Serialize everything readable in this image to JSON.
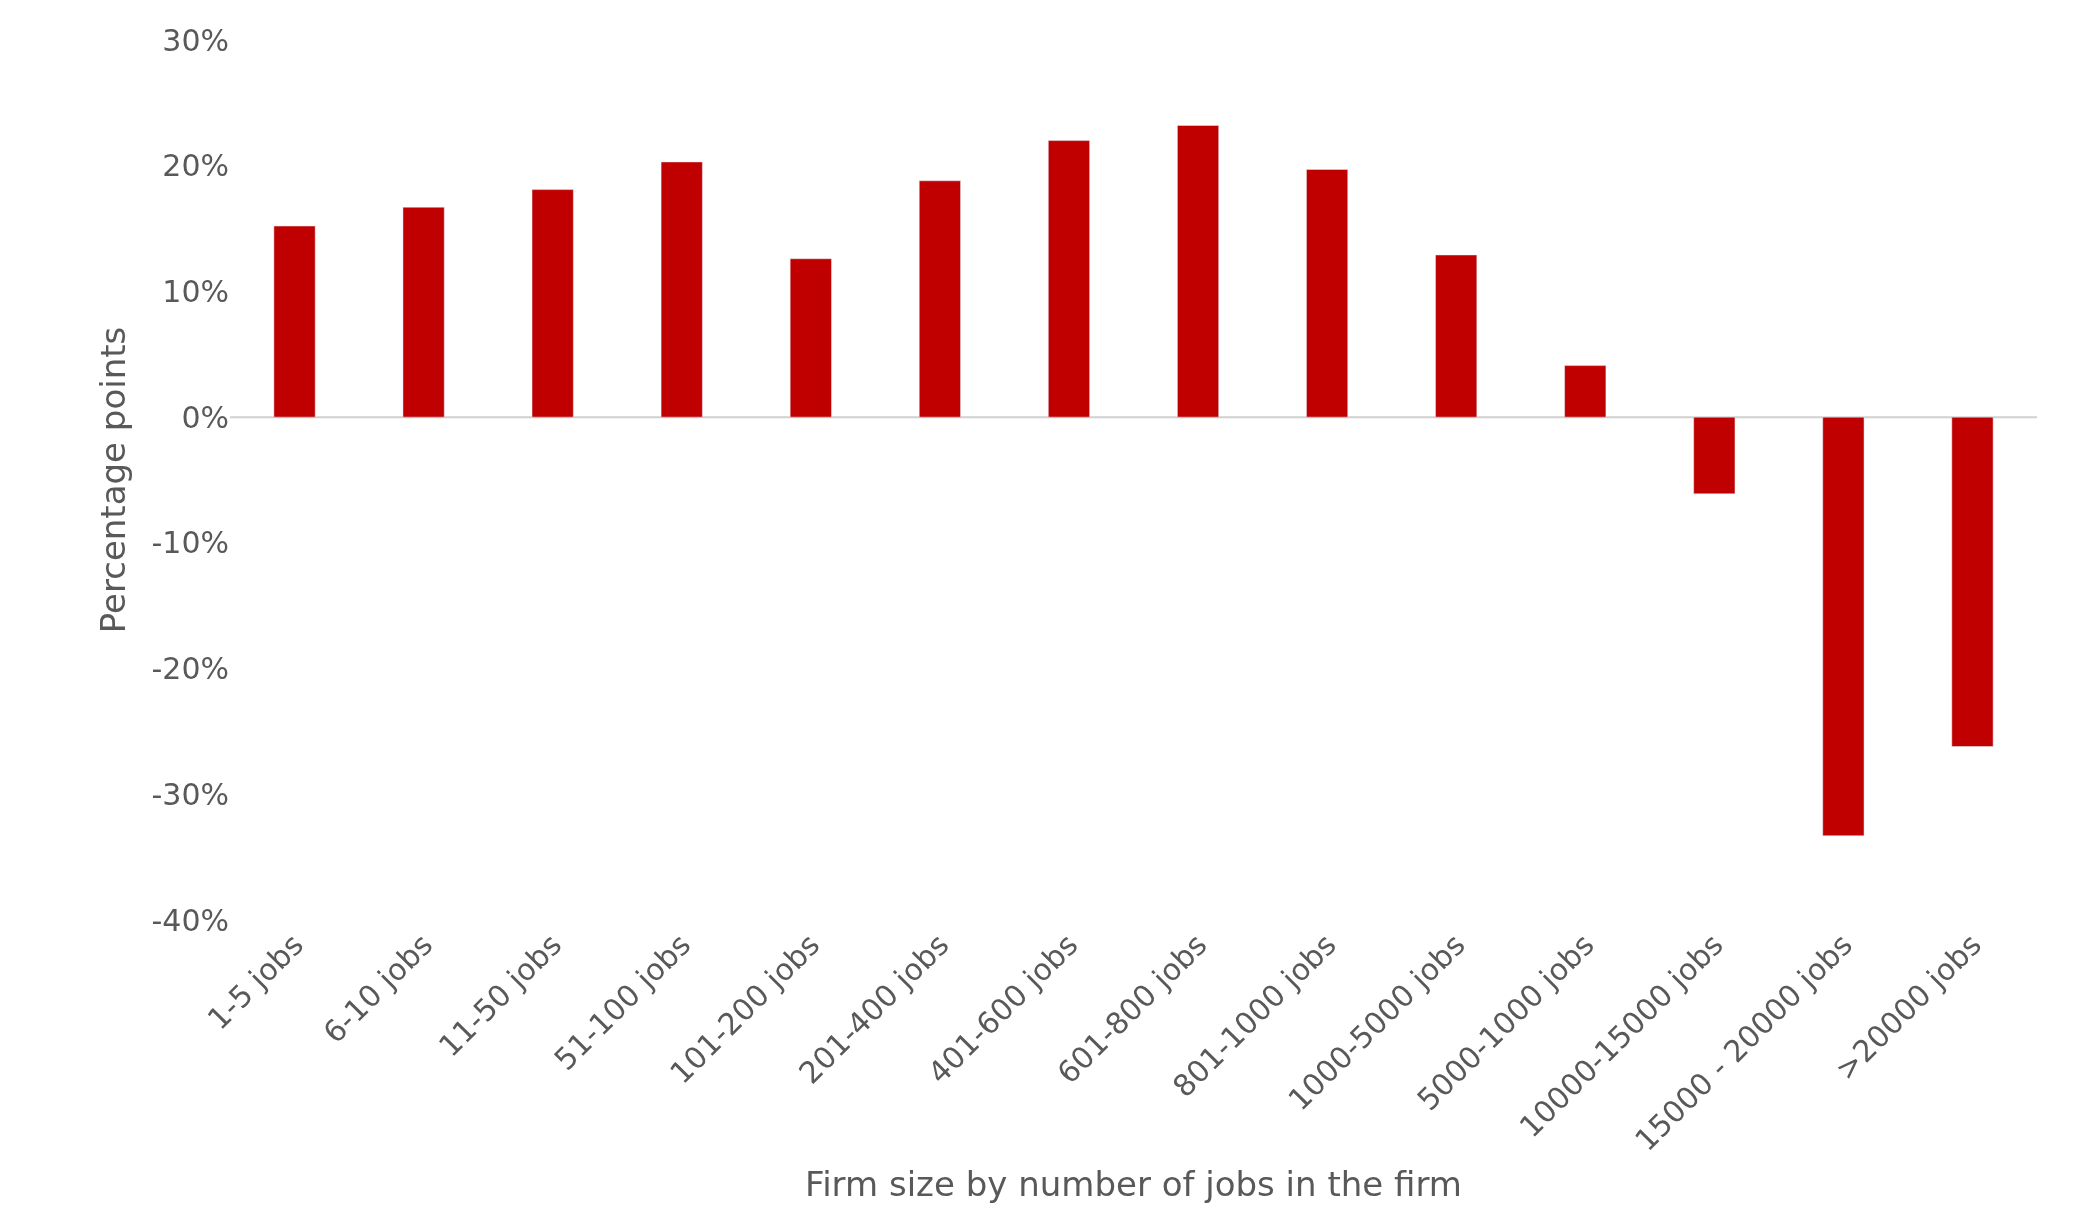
{
  "chart_data": {
    "type": "bar",
    "categories": [
      "1-5 jobs",
      "6-10 jobs",
      "11-50 jobs",
      "51-100 jobs",
      "101-200 jobs",
      "201-400 jobs",
      "401-600 jobs",
      "601-800 jobs",
      "801-1000 jobs",
      "1000-5000 jobs",
      "5000-1000 jobs",
      "10000-15000 jobs",
      "15000 - 20000 jobs",
      ">20000 jobs"
    ],
    "values": [
      15.2,
      16.7,
      18.1,
      20.3,
      12.6,
      18.8,
      22.0,
      23.2,
      19.7,
      12.9,
      4.1,
      -6.1,
      -33.3,
      -26.2
    ],
    "color": "#c00000",
    "xlabel": "Firm size by number of jobs in the firm",
    "ylabel": "Percentage points",
    "ylim": [
      -40,
      30
    ],
    "yticks": [
      {
        "value": -40,
        "label": "-40%"
      },
      {
        "value": -30,
        "label": "-30%"
      },
      {
        "value": -20,
        "label": "-20%"
      },
      {
        "value": -10,
        "label": "-10%"
      },
      {
        "value": 0,
        "label": "0%"
      },
      {
        "value": 10,
        "label": "10%"
      },
      {
        "value": 20,
        "label": "20%"
      },
      {
        "value": 30,
        "label": "30%"
      }
    ],
    "ref_lines": [
      {
        "axis": "y",
        "value": 0,
        "color": "#d0d0d0"
      }
    ],
    "legend": false
  }
}
